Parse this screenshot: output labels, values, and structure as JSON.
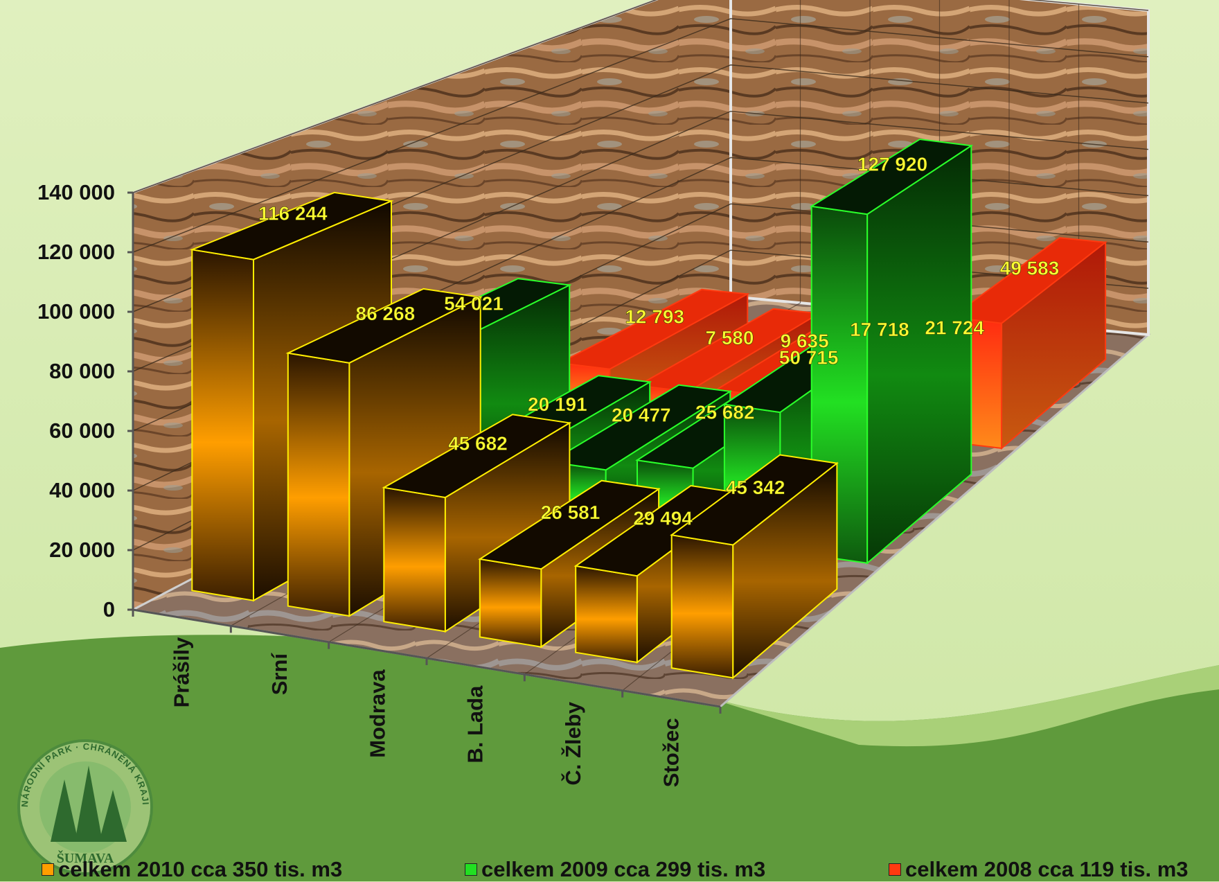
{
  "chart_data": {
    "type": "bar",
    "style": "3d-clustered-depth",
    "categories": [
      "Prášily",
      "Srní",
      "Modrava",
      "B. Lada",
      "Č. Žleby",
      "Stožec"
    ],
    "series": [
      {
        "name": "celkem 2010 cca 350 tis. m3",
        "color": "#ff9e00",
        "values": [
          116244,
          86268,
          45682,
          26581,
          29494,
          45342
        ],
        "labels": [
          "116 244",
          "86 268",
          "45 682",
          "26 581",
          "29 494",
          "45 342"
        ]
      },
      {
        "name": "celkem 2009 cca 299 tis. m3",
        "color": "#22e022",
        "values": [
          54021,
          20191,
          20477,
          25682,
          50715,
          127920
        ],
        "labels": [
          "54 021",
          "20 191",
          "20 477",
          "25 682",
          "50 715",
          "127 920"
        ]
      },
      {
        "name": "celkem 2008 cca 119 tis. m3",
        "color": "#ff3a10",
        "values": [
          12793,
          7580,
          9635,
          17718,
          21724,
          49583
        ],
        "labels": [
          "12 793",
          "7 580",
          "9 635",
          "17 718",
          "21 724",
          "49 583"
        ]
      }
    ],
    "ylim": [
      0,
      140000
    ],
    "yticks": [
      0,
      20000,
      40000,
      60000,
      80000,
      100000,
      120000,
      140000
    ],
    "ytick_labels": [
      "0",
      "20 000",
      "40 000",
      "60 000",
      "80 000",
      "100 000",
      "120 000",
      "140 000"
    ],
    "grid": true,
    "legend_position": "bottom"
  },
  "logo": {
    "text_top": "NÁRODNÍ PARK · CHRÁNĚNÁ KRAJINNÁ OBLAST",
    "text_bottom": "ŠUMAVA"
  }
}
